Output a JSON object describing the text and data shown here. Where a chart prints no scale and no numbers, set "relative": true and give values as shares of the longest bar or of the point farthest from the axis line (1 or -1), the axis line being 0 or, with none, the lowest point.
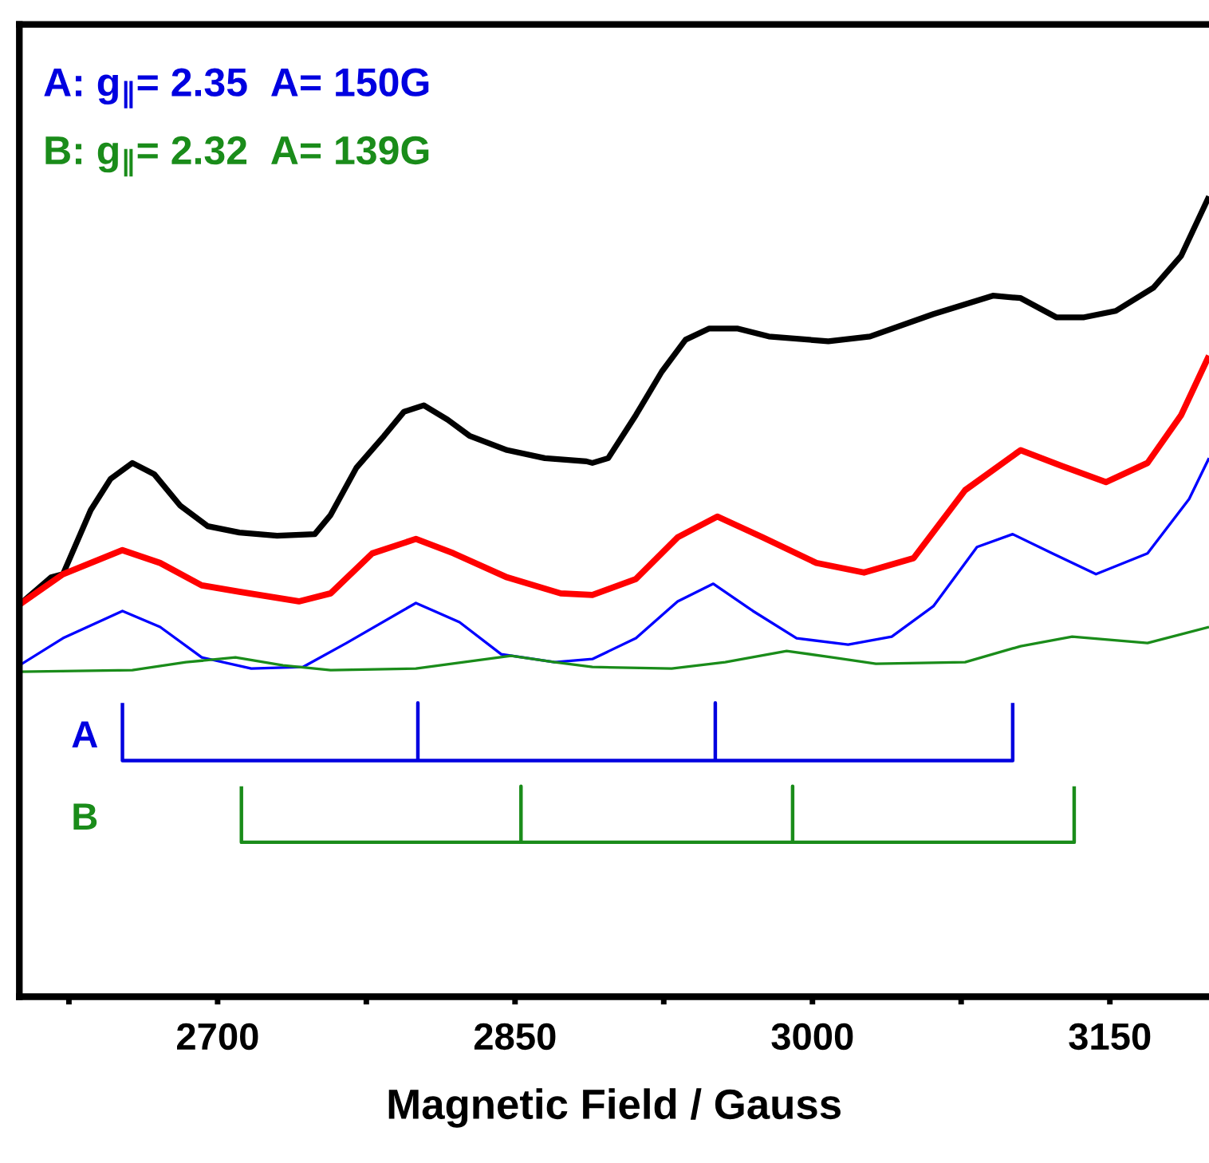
{
  "chart_data": {
    "type": "line",
    "relative": true,
    "xlabel": "Magnetic Field / Gauss",
    "xlim": [
      2600,
      3200
    ],
    "xticks": [
      {
        "value": 2625,
        "label": null
      },
      2700,
      {
        "value": 2775,
        "label": null
      },
      2850,
      {
        "value": 2925,
        "label": null
      },
      3000,
      {
        "value": 3075,
        "label": null
      },
      3150
    ],
    "annotations": [
      "A: g$_{∥}$= 2.35  A= 150G",
      "B: g$_{∥}$= 2.32  A= 139G"
    ],
    "series": [
      {
        "color": "#000000",
        "x": [
          2600,
          2616,
          2622,
          2636,
          2646,
          2657,
          2668,
          2681,
          2695,
          2711,
          2730,
          2749,
          2757,
          2770,
          2784,
          2794,
          2804,
          2816,
          2827,
          2846,
          2865,
          2886,
          2889,
          2897,
          2911,
          2924,
          2936,
          2948,
          2962,
          2978,
          3008,
          3029,
          3061,
          3091,
          3105,
          3123,
          3137,
          3153,
          3172,
          3186,
          3200
        ],
        "values": [
          0.49,
          0.524,
          0.528,
          0.608,
          0.647,
          0.667,
          0.653,
          0.614,
          0.588,
          0.58,
          0.576,
          0.578,
          0.602,
          0.661,
          0.701,
          0.731,
          0.739,
          0.721,
          0.701,
          0.683,
          0.673,
          0.669,
          0.667,
          0.673,
          0.727,
          0.781,
          0.821,
          0.835,
          0.835,
          0.825,
          0.819,
          0.825,
          0.853,
          0.876,
          0.873,
          0.849,
          0.849,
          0.857,
          0.886,
          0.926,
          1
        ]
      },
      {
        "color": "#ff0000",
        "x": [
          2600,
          2622,
          2652,
          2671,
          2692,
          2711,
          2741,
          2757,
          2778,
          2800,
          2819,
          2846,
          2873,
          2889,
          2911,
          2932,
          2952,
          2975,
          3002,
          3026,
          3051,
          3077,
          3105,
          3126,
          3148,
          3169,
          3186,
          3200
        ],
        "values": [
          0.49,
          0.528,
          0.558,
          0.542,
          0.514,
          0.506,
          0.494,
          0.504,
          0.554,
          0.572,
          0.554,
          0.524,
          0.504,
          0.502,
          0.522,
          0.574,
          0.6,
          0.574,
          0.542,
          0.53,
          0.548,
          0.633,
          0.683,
          0.663,
          0.643,
          0.667,
          0.727,
          0.801
        ]
      },
      {
        "color": "#0000ff",
        "x": [
          2600,
          2622,
          2652,
          2671,
          2692,
          2717,
          2743,
          2765,
          2800,
          2822,
          2843,
          2870,
          2889,
          2911,
          2932,
          2950,
          2970,
          2992,
          3018,
          3040,
          3061,
          3083,
          3101,
          3121,
          3143,
          3169,
          3190,
          3200
        ],
        "values": [
          0.414,
          0.448,
          0.482,
          0.462,
          0.424,
          0.41,
          0.412,
          0.442,
          0.492,
          0.468,
          0.428,
          0.418,
          0.422,
          0.448,
          0.494,
          0.516,
          0.482,
          0.448,
          0.44,
          0.45,
          0.488,
          0.562,
          0.578,
          0.554,
          0.528,
          0.554,
          0.622,
          0.673
        ]
      },
      {
        "color": "#1a8c1a",
        "x": [
          2600,
          2657,
          2684,
          2709,
          2733,
          2757,
          2800,
          2824,
          2848,
          2870,
          2889,
          2929,
          2956,
          2987,
          3010,
          3032,
          3077,
          3105,
          3131,
          3169,
          3200
        ],
        "values": [
          0.406,
          0.408,
          0.418,
          0.424,
          0.414,
          0.408,
          0.41,
          0.418,
          0.426,
          0.418,
          0.412,
          0.41,
          0.418,
          0.432,
          0.424,
          0.416,
          0.418,
          0.438,
          0.45,
          0.442,
          0.462
        ]
      },
      {
        "name": "A",
        "color": "#0000e0",
        "x": [
          2652,
          2652,
          2801,
          2801,
          2801,
          2951,
          2951,
          2951,
          3101,
          3101
        ],
        "values": [
          0.367,
          0.295,
          0.295,
          0.367,
          0.295,
          0.295,
          0.367,
          0.295,
          0.295,
          0.367
        ]
      },
      {
        "name": "B",
        "color": "#1a8c1a",
        "x": [
          2712,
          2712,
          2853,
          2853,
          2853,
          2990,
          2990,
          2990,
          3132,
          3132
        ],
        "values": [
          0.263,
          0.193,
          0.193,
          0.263,
          0.193,
          0.193,
          0.263,
          0.193,
          0.193,
          0.263
        ]
      }
    ]
  }
}
